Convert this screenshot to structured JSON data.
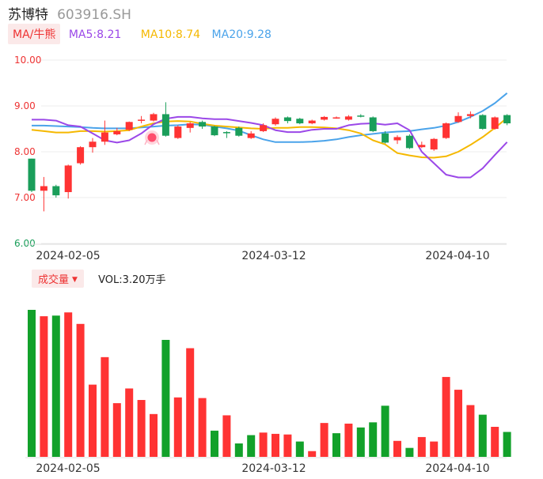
{
  "stock": {
    "name": "苏博特",
    "code": "603916.SH"
  },
  "ma": {
    "toggle_label": "MA/牛熊",
    "ma5": "MA5:8.21",
    "ma10": "MA10:8.74",
    "ma20": "MA20:9.28"
  },
  "volume_panel": {
    "toggle_label": "成交量",
    "vol_label": "VOL:3.20万手"
  },
  "colors": {
    "up": "#ff3333",
    "down": "#1a9e5a",
    "vol_down": "#12a12a",
    "ma5": "#9b48e8",
    "ma10": "#f5b800",
    "ma20": "#4aa3ea"
  },
  "chart_data": [
    {
      "type": "candlestick",
      "title": "",
      "ylim": [
        6.0,
        10.0
      ],
      "yticks": [
        "10.00",
        "9.00",
        "8.00",
        "7.00",
        "6.00"
      ],
      "xticks": [
        "2024-02-05",
        "2024-03-12",
        "2024-04-10"
      ],
      "marker_icon": "bull-bear-icon",
      "candles": [
        {
          "o": 7.85,
          "c": 7.15,
          "h": 7.85,
          "l": 7.12
        },
        {
          "o": 7.15,
          "c": 7.25,
          "h": 7.45,
          "l": 6.7
        },
        {
          "o": 7.25,
          "c": 7.05,
          "h": 7.28,
          "l": 7.0
        },
        {
          "o": 7.12,
          "c": 7.7,
          "h": 7.72,
          "l": 6.98
        },
        {
          "o": 7.75,
          "c": 8.1,
          "h": 8.12,
          "l": 7.72
        },
        {
          "o": 8.1,
          "c": 8.22,
          "h": 8.3,
          "l": 7.98
        },
        {
          "o": 8.22,
          "c": 8.42,
          "h": 8.68,
          "l": 8.15
        },
        {
          "o": 8.38,
          "c": 8.45,
          "h": 8.52,
          "l": 8.36
        },
        {
          "o": 8.48,
          "c": 8.65,
          "h": 8.66,
          "l": 8.45
        },
        {
          "o": 8.68,
          "c": 8.7,
          "h": 8.78,
          "l": 8.62
        },
        {
          "o": 8.68,
          "c": 8.82,
          "h": 8.85,
          "l": 8.66
        },
        {
          "o": 8.82,
          "c": 8.35,
          "h": 9.08,
          "l": 8.33
        },
        {
          "o": 8.3,
          "c": 8.55,
          "h": 8.58,
          "l": 8.28
        },
        {
          "o": 8.52,
          "c": 8.62,
          "h": 8.65,
          "l": 8.42
        },
        {
          "o": 8.65,
          "c": 8.55,
          "h": 8.68,
          "l": 8.5
        },
        {
          "o": 8.55,
          "c": 8.36,
          "h": 8.57,
          "l": 8.34
        },
        {
          "o": 8.43,
          "c": 8.42,
          "h": 8.45,
          "l": 8.3
        },
        {
          "o": 8.52,
          "c": 8.35,
          "h": 8.55,
          "l": 8.33
        },
        {
          "o": 8.3,
          "c": 8.4,
          "h": 8.45,
          "l": 8.28
        },
        {
          "o": 8.45,
          "c": 8.58,
          "h": 8.62,
          "l": 8.43
        },
        {
          "o": 8.6,
          "c": 8.72,
          "h": 8.75,
          "l": 8.57
        },
        {
          "o": 8.75,
          "c": 8.67,
          "h": 8.77,
          "l": 8.62
        },
        {
          "o": 8.72,
          "c": 8.62,
          "h": 8.74,
          "l": 8.6
        },
        {
          "o": 8.62,
          "c": 8.68,
          "h": 8.7,
          "l": 8.6
        },
        {
          "o": 8.7,
          "c": 8.76,
          "h": 8.78,
          "l": 8.68
        },
        {
          "o": 8.73,
          "c": 8.75,
          "h": 8.77,
          "l": 8.72
        },
        {
          "o": 8.7,
          "c": 8.77,
          "h": 8.8,
          "l": 8.68
        },
        {
          "o": 8.79,
          "c": 8.77,
          "h": 8.82,
          "l": 8.75
        },
        {
          "o": 8.75,
          "c": 8.45,
          "h": 8.77,
          "l": 8.43
        },
        {
          "o": 8.4,
          "c": 8.2,
          "h": 8.45,
          "l": 8.18
        },
        {
          "o": 8.25,
          "c": 8.32,
          "h": 8.36,
          "l": 8.17
        },
        {
          "o": 8.35,
          "c": 8.08,
          "h": 8.38,
          "l": 8.06
        },
        {
          "o": 8.1,
          "c": 8.15,
          "h": 8.22,
          "l": 8.08
        },
        {
          "o": 8.05,
          "c": 8.28,
          "h": 8.3,
          "l": 8.02
        },
        {
          "o": 8.3,
          "c": 8.62,
          "h": 8.64,
          "l": 8.28
        },
        {
          "o": 8.65,
          "c": 8.78,
          "h": 8.86,
          "l": 8.63
        },
        {
          "o": 8.78,
          "c": 8.82,
          "h": 8.88,
          "l": 8.73
        },
        {
          "o": 8.8,
          "c": 8.5,
          "h": 8.82,
          "l": 8.48
        },
        {
          "o": 8.5,
          "c": 8.75,
          "h": 8.77,
          "l": 8.48
        },
        {
          "o": 8.8,
          "c": 8.62,
          "h": 8.82,
          "l": 8.58
        }
      ],
      "ma5": [
        8.7,
        8.7,
        8.68,
        8.58,
        8.55,
        8.4,
        8.25,
        8.2,
        8.25,
        8.4,
        8.6,
        8.72,
        8.76,
        8.76,
        8.73,
        8.71,
        8.71,
        8.67,
        8.63,
        8.58,
        8.47,
        8.43,
        8.43,
        8.48,
        8.5,
        8.5,
        8.58,
        8.61,
        8.62,
        8.59,
        8.62,
        8.47,
        8.0,
        7.75,
        7.5,
        7.44,
        7.44,
        7.64,
        7.93,
        8.21
      ],
      "ma10": [
        8.48,
        8.45,
        8.42,
        8.42,
        8.45,
        8.45,
        8.44,
        8.45,
        8.47,
        8.55,
        8.62,
        8.66,
        8.67,
        8.66,
        8.61,
        8.57,
        8.55,
        8.53,
        8.51,
        8.5,
        8.52,
        8.52,
        8.54,
        8.54,
        8.53,
        8.51,
        8.47,
        8.4,
        8.25,
        8.16,
        7.97,
        7.92,
        7.88,
        7.87,
        7.9,
        8.0,
        8.15,
        8.32,
        8.52,
        8.74
      ],
      "ma20": [
        8.57,
        8.57,
        8.56,
        8.55,
        8.54,
        8.52,
        8.51,
        8.51,
        8.51,
        8.53,
        8.55,
        8.57,
        8.58,
        8.6,
        8.59,
        8.55,
        8.51,
        8.46,
        8.36,
        8.27,
        8.21,
        8.21,
        8.21,
        8.22,
        8.24,
        8.27,
        8.32,
        8.36,
        8.39,
        8.42,
        8.44,
        8.45,
        8.49,
        8.52,
        8.57,
        8.65,
        8.76,
        8.89,
        9.06,
        9.28
      ]
    },
    {
      "type": "bar",
      "title": "成交量",
      "xticks": [
        "2024-02-05",
        "2024-03-12",
        "2024-04-10"
      ],
      "values": [
        2.3,
        2.2,
        2.21,
        2.26,
        2.08,
        1.13,
        1.56,
        0.84,
        1.07,
        0.89,
        0.67,
        1.83,
        0.93,
        1.7,
        0.92,
        0.41,
        0.65,
        0.21,
        0.34,
        0.38,
        0.36,
        0.35,
        0.24,
        0.09,
        0.53,
        0.37,
        0.52,
        0.46,
        0.54,
        0.8,
        0.25,
        0.14,
        0.31,
        0.24,
        1.25,
        1.05,
        0.81,
        0.66,
        0.47,
        0.39
      ],
      "up": [
        false,
        true,
        false,
        true,
        true,
        true,
        true,
        true,
        true,
        true,
        true,
        false,
        true,
        true,
        true,
        false,
        true,
        false,
        false,
        true,
        true,
        true,
        false,
        true,
        true,
        false,
        true,
        false,
        false,
        false,
        true,
        false,
        true,
        true,
        true,
        true,
        true,
        false,
        true,
        false
      ]
    }
  ]
}
